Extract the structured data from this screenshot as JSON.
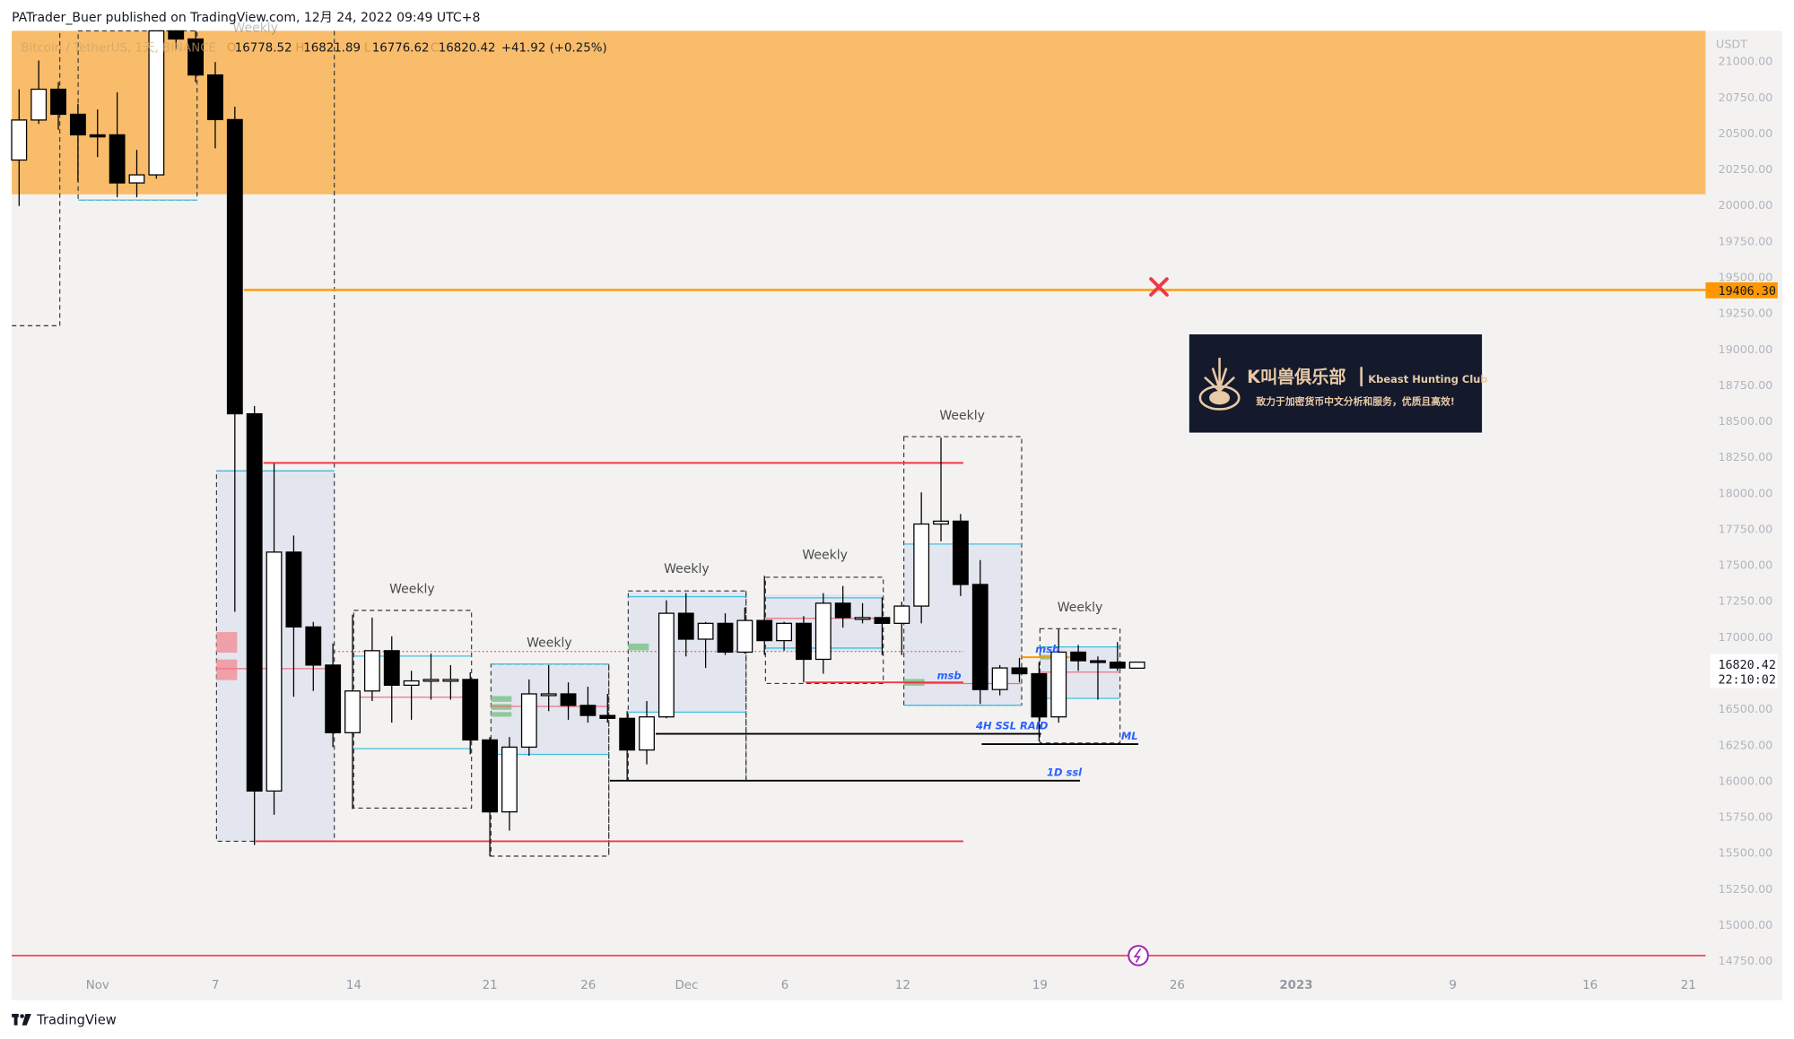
{
  "header": {
    "published_by": "PATrader_Buer published on TradingView.com, 12月 24, 2022 09:49 UTC+8"
  },
  "legend": {
    "symbol": "Bitcoin / TetherUS, 1天, BINANCE",
    "o_label": "O",
    "open": "16778.52",
    "h_label": "H",
    "high": "16821.89",
    "l_label": "L",
    "low": "16776.62",
    "c_label": "C",
    "close": "16820.42",
    "change": "+41.92 (+0.25%)"
  },
  "price_axis": {
    "currency": "USDT",
    "ticks": [
      "21000.00",
      "20750.00",
      "20500.00",
      "20250.00",
      "20000.00",
      "19750.00",
      "19500.00",
      "19250.00",
      "19000.00",
      "18750.00",
      "18500.00",
      "18250.00",
      "18000.00",
      "17750.00",
      "17500.00",
      "17250.00",
      "17000.00",
      "16500.00",
      "16250.00",
      "16000.00",
      "15750.00",
      "15500.00",
      "15250.00",
      "15000.00",
      "14750.00"
    ],
    "level_label": "19406.30",
    "last_price": "16820.42",
    "countdown": "22:10:02"
  },
  "time_axis": {
    "ticks": [
      "Nov",
      "7",
      "14",
      "21",
      "26",
      "Dec",
      "6",
      "12",
      "19",
      "26",
      "2023",
      "9",
      "16",
      "21"
    ]
  },
  "annotations": {
    "weekly": [
      "Weekly",
      "Weekly",
      "Weekly",
      "Weekly",
      "Weekly",
      "Weekly",
      "Weekly"
    ],
    "msb_1": "msb",
    "msb_2": "msb",
    "ssl_raid": "4H SSL RAID",
    "ssl_1d": "1D ssl",
    "ml": "ML"
  },
  "watermark": {
    "title_cn": "K叫兽俱乐部",
    "title_en": "Kbeast Hunting Club",
    "slogan": "致力于加密货币中文分析和服务，优质且高效!"
  },
  "footer": {
    "brand": "TradingView"
  },
  "colors": {
    "supply_zone": "#f8bc6a",
    "level_line": "#ff9800",
    "red_line": "#f23645",
    "cyan_line": "#3fc1e0",
    "box_fill": "#e3e6ef",
    "note_blue": "#2962ff",
    "bull": "#ffffff",
    "bear": "#000000"
  },
  "chart_data": {
    "type": "candlestick",
    "ylim": [
      14750,
      21000
    ],
    "y_unit": "USDT",
    "level": 19406.3,
    "candles": [
      {
        "date": "2022-10-28",
        "o": 20309,
        "h": 20800,
        "l": 19990,
        "c": 20587
      },
      {
        "date": "2022-10-29",
        "o": 20587,
        "h": 21000,
        "l": 20560,
        "c": 20801
      },
      {
        "date": "2022-10-30",
        "o": 20801,
        "h": 20850,
        "l": 20520,
        "c": 20627
      },
      {
        "date": "2022-10-31",
        "o": 20627,
        "h": 20700,
        "l": 20160,
        "c": 20484
      },
      {
        "date": "2022-11-01",
        "o": 20484,
        "h": 20660,
        "l": 20330,
        "c": 20470
      },
      {
        "date": "2022-11-02",
        "o": 20484,
        "h": 20780,
        "l": 20050,
        "c": 20150
      },
      {
        "date": "2022-11-03",
        "o": 20150,
        "h": 20380,
        "l": 20050,
        "c": 20206
      },
      {
        "date": "2022-11-04",
        "o": 20206,
        "h": 21380,
        "l": 20180,
        "c": 21300
      },
      {
        "date": "2022-11-05",
        "o": 21300,
        "h": 21480,
        "l": 21080,
        "c": 21150
      },
      {
        "date": "2022-11-06",
        "o": 21150,
        "h": 21250,
        "l": 20850,
        "c": 20900
      },
      {
        "date": "2022-11-07",
        "o": 20900,
        "h": 20990,
        "l": 20390,
        "c": 20590
      },
      {
        "date": "2022-11-08",
        "o": 20590,
        "h": 20680,
        "l": 17170,
        "c": 18546
      },
      {
        "date": "2022-11-09",
        "o": 18546,
        "h": 18600,
        "l": 15550,
        "c": 15925
      },
      {
        "date": "2022-11-10",
        "o": 15925,
        "h": 18200,
        "l": 15760,
        "c": 17585
      },
      {
        "date": "2022-11-11",
        "o": 17585,
        "h": 17700,
        "l": 16580,
        "c": 17065
      },
      {
        "date": "2022-11-12",
        "o": 17065,
        "h": 17100,
        "l": 16620,
        "c": 16800
      },
      {
        "date": "2022-11-13",
        "o": 16800,
        "h": 16950,
        "l": 16230,
        "c": 16330
      },
      {
        "date": "2022-11-14",
        "o": 16330,
        "h": 17150,
        "l": 15800,
        "c": 16620
      },
      {
        "date": "2022-11-15",
        "o": 16620,
        "h": 17130,
        "l": 16550,
        "c": 16900
      },
      {
        "date": "2022-11-16",
        "o": 16900,
        "h": 17000,
        "l": 16400,
        "c": 16660
      },
      {
        "date": "2022-11-17",
        "o": 16660,
        "h": 16760,
        "l": 16420,
        "c": 16690
      },
      {
        "date": "2022-11-18",
        "o": 16700,
        "h": 16880,
        "l": 16560,
        "c": 16700
      },
      {
        "date": "2022-11-19",
        "o": 16700,
        "h": 16800,
        "l": 16560,
        "c": 16700
      },
      {
        "date": "2022-11-20",
        "o": 16700,
        "h": 16750,
        "l": 16180,
        "c": 16280
      },
      {
        "date": "2022-11-21",
        "o": 16280,
        "h": 16300,
        "l": 15470,
        "c": 15780
      },
      {
        "date": "2022-11-22",
        "o": 15780,
        "h": 16300,
        "l": 15650,
        "c": 16230
      },
      {
        "date": "2022-11-23",
        "o": 16230,
        "h": 16700,
        "l": 16170,
        "c": 16600
      },
      {
        "date": "2022-11-24",
        "o": 16600,
        "h": 16800,
        "l": 16480,
        "c": 16600
      },
      {
        "date": "2022-11-25",
        "o": 16600,
        "h": 16680,
        "l": 16420,
        "c": 16520
      },
      {
        "date": "2022-11-26",
        "o": 16520,
        "h": 16650,
        "l": 16400,
        "c": 16450
      },
      {
        "date": "2022-11-27",
        "o": 16450,
        "h": 16600,
        "l": 16400,
        "c": 16430
      },
      {
        "date": "2022-11-28",
        "o": 16430,
        "h": 16480,
        "l": 16000,
        "c": 16210
      },
      {
        "date": "2022-11-29",
        "o": 16210,
        "h": 16550,
        "l": 16110,
        "c": 16440
      },
      {
        "date": "2022-11-30",
        "o": 16440,
        "h": 17250,
        "l": 16430,
        "c": 17160
      },
      {
        "date": "2022-12-01",
        "o": 17160,
        "h": 17300,
        "l": 16860,
        "c": 16980
      },
      {
        "date": "2022-12-02",
        "o": 16980,
        "h": 17100,
        "l": 16780,
        "c": 17090
      },
      {
        "date": "2022-12-03",
        "o": 17090,
        "h": 17160,
        "l": 16870,
        "c": 16890
      },
      {
        "date": "2022-12-04",
        "o": 16890,
        "h": 17200,
        "l": 16880,
        "c": 17110
      },
      {
        "date": "2022-12-05",
        "o": 17110,
        "h": 17420,
        "l": 16870,
        "c": 16970
      },
      {
        "date": "2022-12-06",
        "o": 16970,
        "h": 17100,
        "l": 16900,
        "c": 17090
      },
      {
        "date": "2022-12-07",
        "o": 17090,
        "h": 17140,
        "l": 16680,
        "c": 16840
      },
      {
        "date": "2022-12-08",
        "o": 16840,
        "h": 17300,
        "l": 16740,
        "c": 17230
      },
      {
        "date": "2022-12-09",
        "o": 17230,
        "h": 17350,
        "l": 17060,
        "c": 17130
      },
      {
        "date": "2022-12-10",
        "o": 17130,
        "h": 17230,
        "l": 17090,
        "c": 17130
      },
      {
        "date": "2022-12-11",
        "o": 17130,
        "h": 17270,
        "l": 16870,
        "c": 17090
      },
      {
        "date": "2022-12-12",
        "o": 17090,
        "h": 17240,
        "l": 16870,
        "c": 17210
      },
      {
        "date": "2022-12-13",
        "o": 17210,
        "h": 18000,
        "l": 17090,
        "c": 17780
      },
      {
        "date": "2022-12-14",
        "o": 17780,
        "h": 18380,
        "l": 17660,
        "c": 17800
      },
      {
        "date": "2022-12-15",
        "o": 17800,
        "h": 17850,
        "l": 17280,
        "c": 17360
      },
      {
        "date": "2022-12-16",
        "o": 17360,
        "h": 17530,
        "l": 16530,
        "c": 16630
      },
      {
        "date": "2022-12-17",
        "o": 16630,
        "h": 16800,
        "l": 16590,
        "c": 16780
      },
      {
        "date": "2022-12-18",
        "o": 16780,
        "h": 16850,
        "l": 16680,
        "c": 16740
      },
      {
        "date": "2022-12-19",
        "o": 16740,
        "h": 16820,
        "l": 16270,
        "c": 16440
      },
      {
        "date": "2022-12-20",
        "o": 16440,
        "h": 17050,
        "l": 16400,
        "c": 16890
      },
      {
        "date": "2022-12-21",
        "o": 16890,
        "h": 16940,
        "l": 16760,
        "c": 16830
      },
      {
        "date": "2022-12-22",
        "o": 16830,
        "h": 16860,
        "l": 16560,
        "c": 16820
      },
      {
        "date": "2022-12-23",
        "o": 16820,
        "h": 16960,
        "l": 16760,
        "c": 16780
      },
      {
        "date": "2022-12-24",
        "o": 16778.52,
        "h": 16821.89,
        "l": 16776.62,
        "c": 16820.42
      }
    ]
  }
}
